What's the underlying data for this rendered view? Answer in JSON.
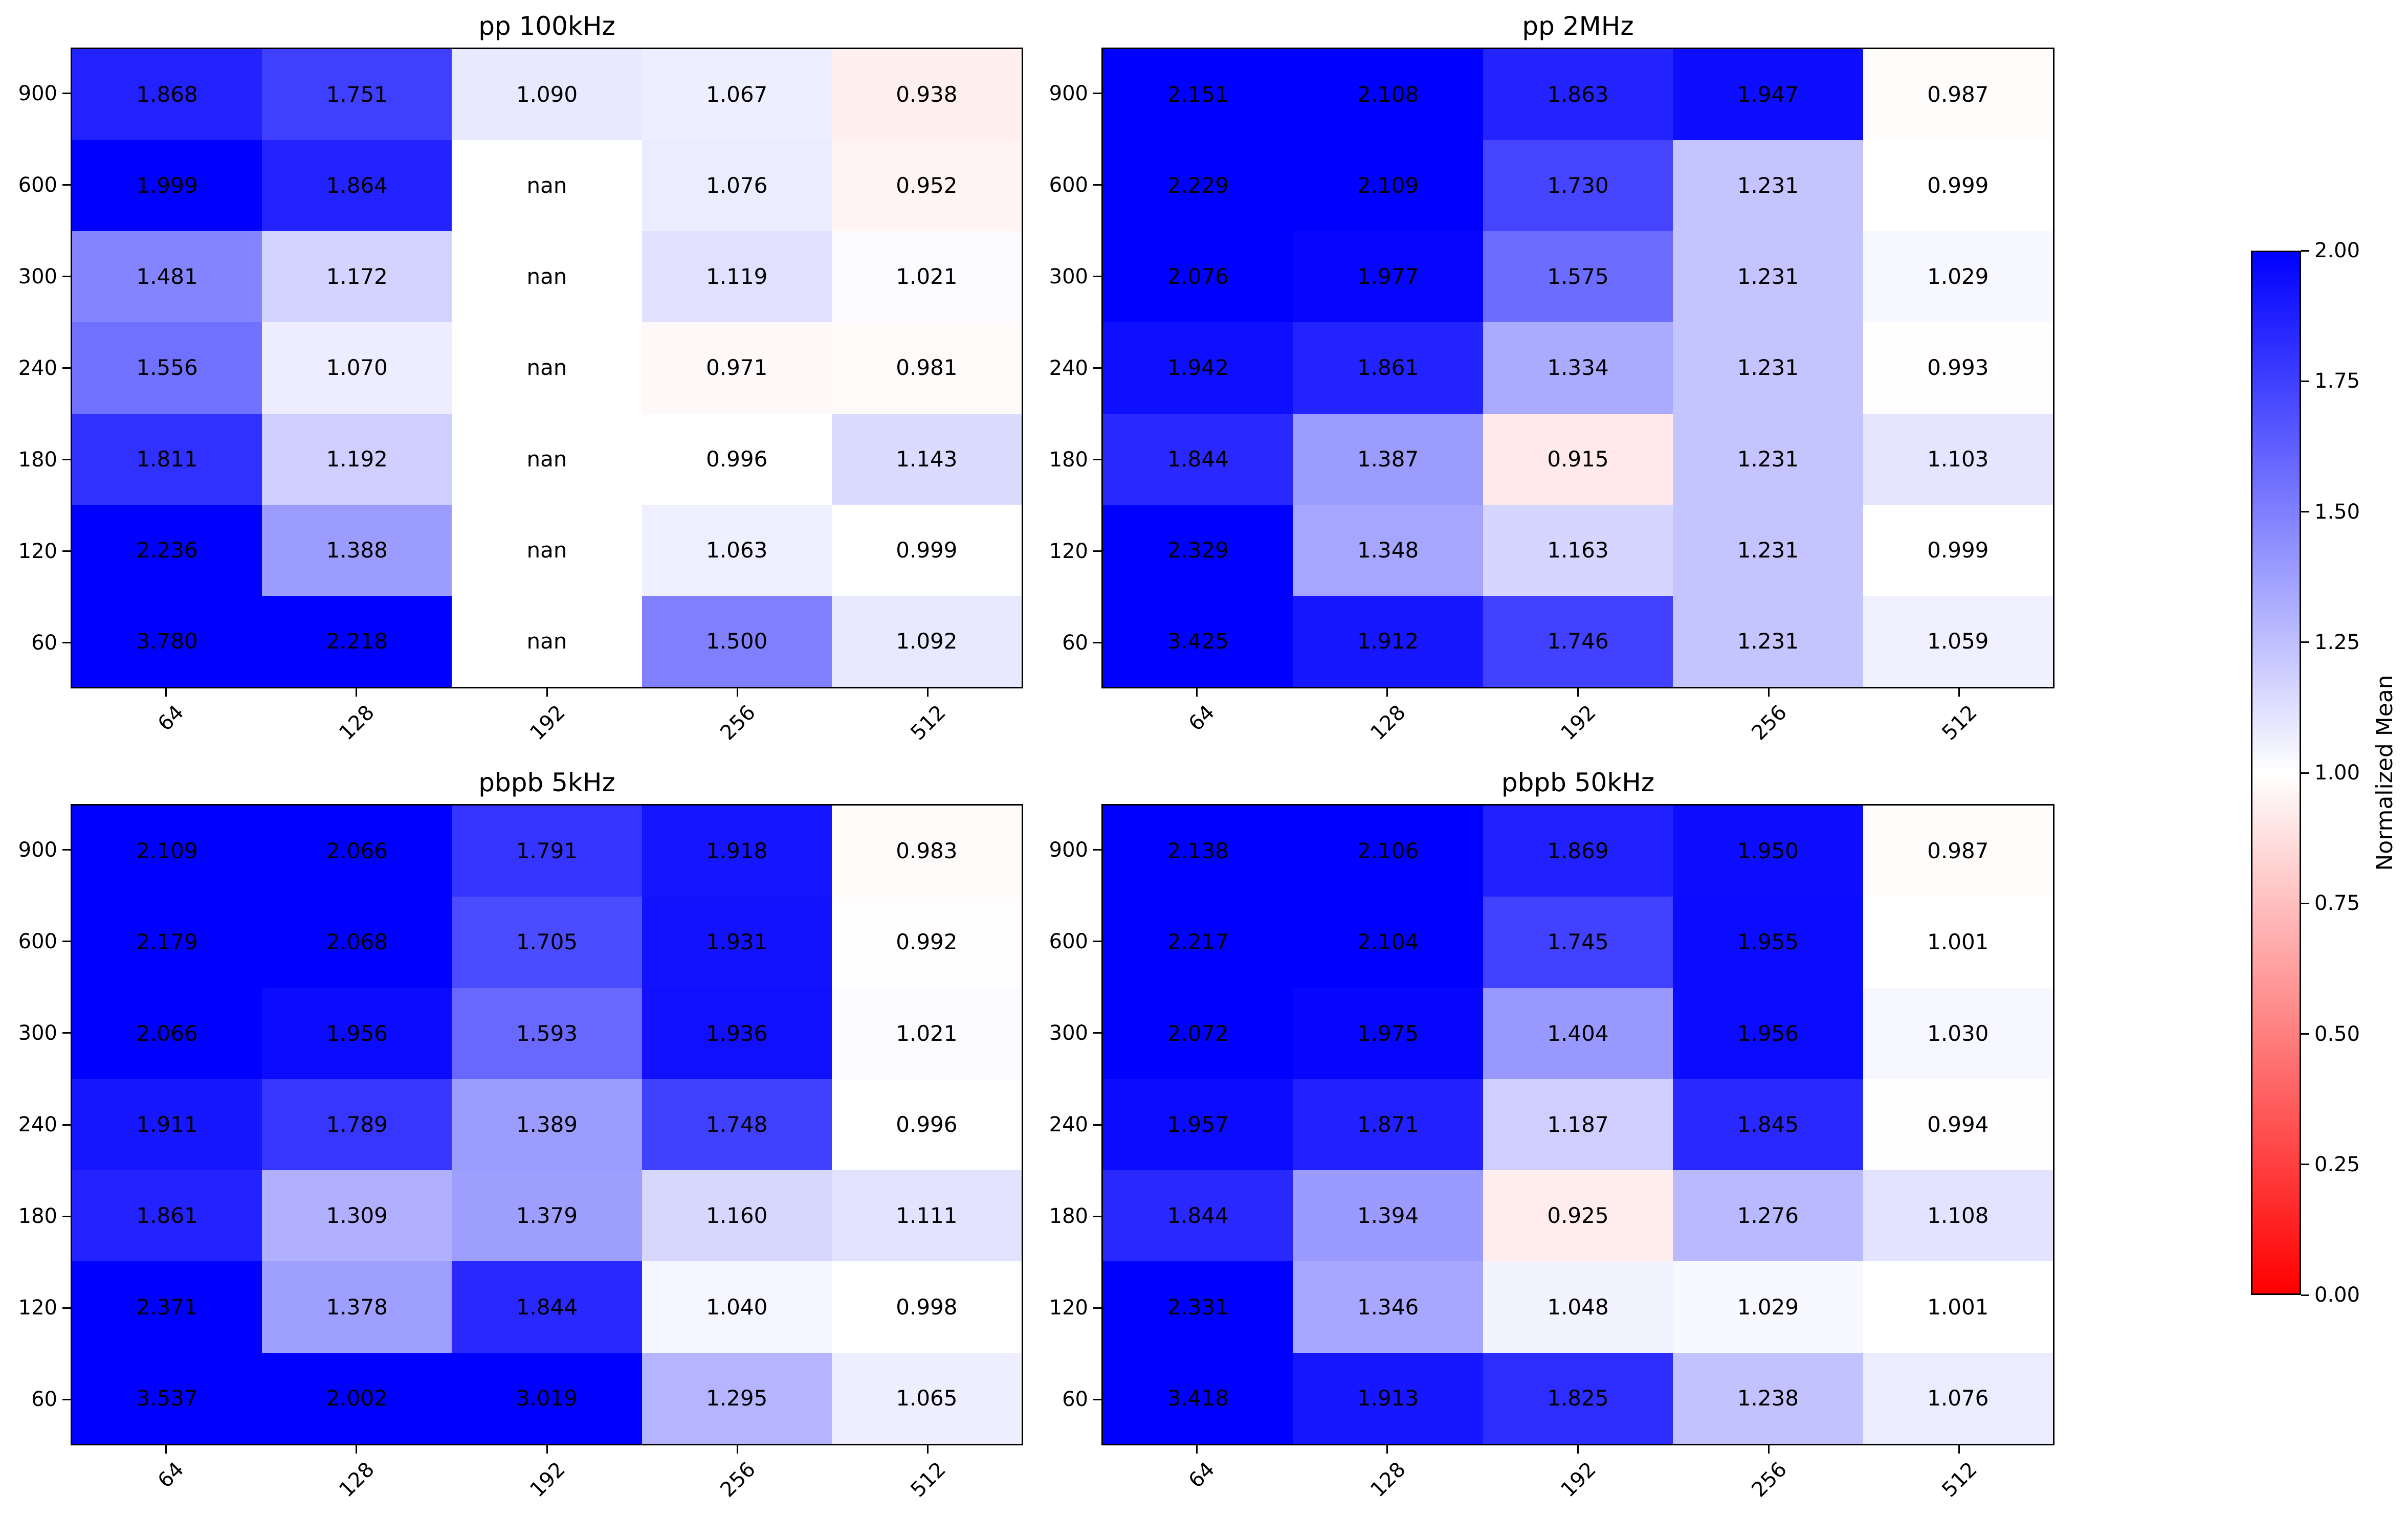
{
  "chart_data": {
    "type": "heatmap",
    "layout": "2x2 grid of annotated heatmaps with shared colorbar",
    "colormap": {
      "style": "red-white-blue (bwr reversed)",
      "low_color": "#ff0000",
      "mid_color": "#ffffff",
      "high_color": "#0000ff",
      "vmin": 0.0,
      "vmax": 2.0
    },
    "x_labels": [
      "64",
      "128",
      "192",
      "256",
      "512"
    ],
    "y_labels": [
      "900",
      "600",
      "300",
      "240",
      "180",
      "120",
      "60"
    ],
    "x_tick_rotation_deg": 45,
    "nan_text": "nan",
    "panels": [
      {
        "title": "pp 100kHz",
        "values": [
          [
            1.868,
            1.751,
            1.09,
            1.067,
            0.938
          ],
          [
            1.999,
            1.864,
            null,
            1.076,
            0.952
          ],
          [
            1.481,
            1.172,
            null,
            1.119,
            1.021
          ],
          [
            1.556,
            1.07,
            null,
            0.971,
            0.981
          ],
          [
            1.811,
            1.192,
            null,
            0.996,
            1.143
          ],
          [
            2.236,
            1.388,
            null,
            1.063,
            0.999
          ],
          [
            3.78,
            2.218,
            null,
            1.5,
            1.092
          ]
        ]
      },
      {
        "title": "pp 2MHz",
        "values": [
          [
            2.151,
            2.108,
            1.863,
            1.947,
            0.987
          ],
          [
            2.229,
            2.109,
            1.73,
            1.231,
            0.999
          ],
          [
            2.076,
            1.977,
            1.575,
            1.231,
            1.029
          ],
          [
            1.942,
            1.861,
            1.334,
            1.231,
            0.993
          ],
          [
            1.844,
            1.387,
            0.915,
            1.231,
            1.103
          ],
          [
            2.329,
            1.348,
            1.163,
            1.231,
            0.999
          ],
          [
            3.425,
            1.912,
            1.746,
            1.231,
            1.059
          ]
        ]
      },
      {
        "title": "pbpb 5kHz",
        "values": [
          [
            2.109,
            2.066,
            1.791,
            1.918,
            0.983
          ],
          [
            2.179,
            2.068,
            1.705,
            1.931,
            0.992
          ],
          [
            2.066,
            1.956,
            1.593,
            1.936,
            1.021
          ],
          [
            1.911,
            1.789,
            1.389,
            1.748,
            0.996
          ],
          [
            1.861,
            1.309,
            1.379,
            1.16,
            1.111
          ],
          [
            2.371,
            1.378,
            1.844,
            1.04,
            0.998
          ],
          [
            3.537,
            2.002,
            3.019,
            1.295,
            1.065
          ]
        ]
      },
      {
        "title": "pbpb 50kHz",
        "values": [
          [
            2.138,
            2.106,
            1.869,
            1.95,
            0.987
          ],
          [
            2.217,
            2.104,
            1.745,
            1.955,
            1.001
          ],
          [
            2.072,
            1.975,
            1.404,
            1.956,
            1.03
          ],
          [
            1.957,
            1.871,
            1.187,
            1.845,
            0.994
          ],
          [
            1.844,
            1.394,
            0.925,
            1.276,
            1.108
          ],
          [
            2.331,
            1.346,
            1.048,
            1.029,
            1.001
          ],
          [
            3.418,
            1.913,
            1.825,
            1.238,
            1.076
          ]
        ]
      }
    ],
    "colorbar": {
      "label": "Normalized Mean",
      "ticks": [
        "2.00",
        "1.75",
        "1.50",
        "1.25",
        "1.00",
        "0.75",
        "0.50",
        "0.25",
        "0.00"
      ]
    }
  }
}
